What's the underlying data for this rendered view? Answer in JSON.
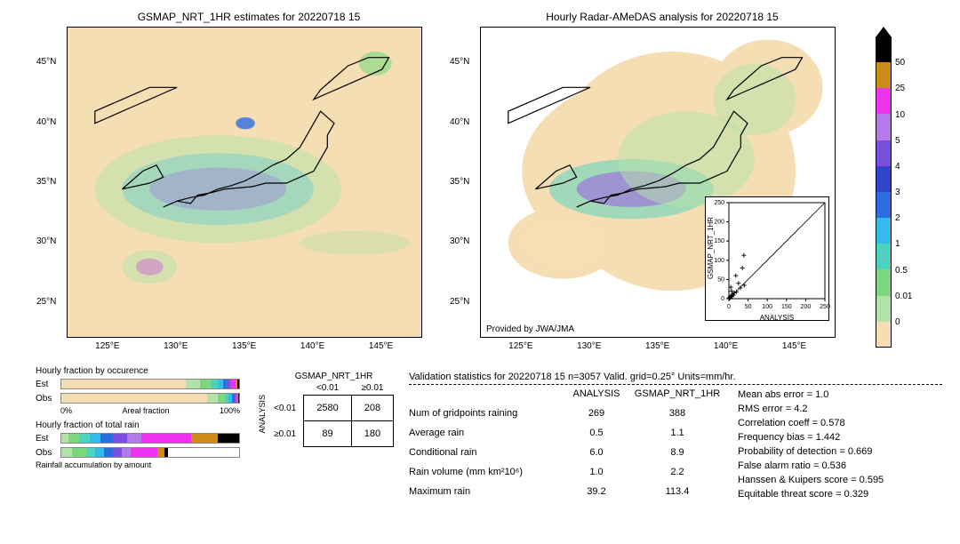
{
  "date_str": "20220718 15",
  "left_map": {
    "title": "GSMAP_NRT_1HR estimates for 20220718 15"
  },
  "right_map": {
    "title": "Hourly Radar-AMeDAS analysis for 20220718 15",
    "provenance": "Provided by JWA/JMA"
  },
  "map_axes": {
    "x_ticks": [
      "125°E",
      "130°E",
      "135°E",
      "140°E",
      "145°E"
    ],
    "y_ticks": [
      "25°N",
      "30°N",
      "35°N",
      "40°N",
      "45°N"
    ],
    "xlim": [
      122,
      148
    ],
    "ylim": [
      22,
      48
    ]
  },
  "colorbar": {
    "ticks": [
      "0",
      "0.01",
      "0.5",
      "1",
      "2",
      "3",
      "4",
      "5",
      "10",
      "25",
      "50"
    ],
    "colors": [
      "#f5deb3",
      "#b3e2a8",
      "#7dd87d",
      "#4dd2c0",
      "#33bbee",
      "#2e6de0",
      "#3344cc",
      "#7a4fe0",
      "#b67ae8",
      "#ee33ee",
      "#cc8b1a",
      "#000000"
    ]
  },
  "scatter_inset": {
    "xlabel": "ANALYSIS",
    "ylabel": "GSMAP_NRT_1HR",
    "lim": [
      0,
      250
    ],
    "ticks": [
      0,
      50,
      100,
      150,
      200,
      250
    ],
    "points": [
      [
        1,
        1
      ],
      [
        2,
        3
      ],
      [
        4,
        2
      ],
      [
        3,
        5
      ],
      [
        6,
        7
      ],
      [
        8,
        6
      ],
      [
        10,
        12
      ],
      [
        12,
        9
      ],
      [
        14,
        15
      ],
      [
        7,
        20
      ],
      [
        20,
        18
      ],
      [
        5,
        30
      ],
      [
        30,
        28
      ],
      [
        25,
        40
      ],
      [
        40,
        35
      ],
      [
        18,
        60
      ],
      [
        35,
        80
      ],
      [
        39,
        113
      ]
    ],
    "marker": "+",
    "color": "#000"
  },
  "occurrence_bars": {
    "title": "Hourly fraction by occurence",
    "xlabel_left": "0%",
    "xlabel_right": "100%",
    "xlabel_mid": "Areal fraction",
    "rows": [
      {
        "label": "Est",
        "segs": [
          [
            "#f5deb3",
            70
          ],
          [
            "#b3e2a8",
            8
          ],
          [
            "#7dd87d",
            6
          ],
          [
            "#4dd2c0",
            4
          ],
          [
            "#33bbee",
            3
          ],
          [
            "#2e6de0",
            2
          ],
          [
            "#7a4fe0",
            2
          ],
          [
            "#ee33ee",
            3
          ],
          [
            "#cc8b1a",
            1
          ],
          [
            "#000",
            1
          ]
        ]
      },
      {
        "label": "Obs",
        "segs": [
          [
            "#f5deb3",
            82
          ],
          [
            "#b3e2a8",
            6
          ],
          [
            "#7dd87d",
            4
          ],
          [
            "#4dd2c0",
            2
          ],
          [
            "#33bbee",
            2
          ],
          [
            "#2e6de0",
            1
          ],
          [
            "#7a4fe0",
            1
          ],
          [
            "#ee33ee",
            1
          ],
          [
            "#cc8b1a",
            0.5
          ],
          [
            "#000",
            0.5
          ]
        ]
      }
    ]
  },
  "rain_bars": {
    "title": "Hourly fraction of total rain",
    "subtitle": "Rainfall accumulation by amount",
    "rows": [
      {
        "label": "Est",
        "segs": [
          [
            "#b3e2a8",
            4
          ],
          [
            "#7dd87d",
            6
          ],
          [
            "#4dd2c0",
            6
          ],
          [
            "#33bbee",
            6
          ],
          [
            "#2e6de0",
            7
          ],
          [
            "#7a4fe0",
            8
          ],
          [
            "#b67ae8",
            8
          ],
          [
            "#ee33ee",
            28
          ],
          [
            "#cc8b1a",
            15
          ],
          [
            "#000",
            12
          ]
        ]
      },
      {
        "label": "Obs",
        "segs": [
          [
            "#b3e2a8",
            6
          ],
          [
            "#7dd87d",
            8
          ],
          [
            "#4dd2c0",
            5
          ],
          [
            "#33bbee",
            5
          ],
          [
            "#2e6de0",
            5
          ],
          [
            "#7a4fe0",
            5
          ],
          [
            "#b67ae8",
            5
          ],
          [
            "#ee33ee",
            15
          ],
          [
            "#cc8b1a",
            4
          ],
          [
            "#000",
            2
          ]
        ]
      }
    ]
  },
  "contingency": {
    "col_title": "GSMAP_NRT_1HR",
    "row_title": "ANALYSIS",
    "col_labels": [
      "<0.01",
      "≥0.01"
    ],
    "row_labels": [
      "<0.01",
      "≥0.01"
    ],
    "cells": [
      [
        "2580",
        "208"
      ],
      [
        "89",
        "180"
      ]
    ]
  },
  "validation": {
    "title": "Validation statistics for 20220718 15  n=3057 Valid. grid=0.25° Units=mm/hr.",
    "col_headers": [
      "",
      "ANALYSIS",
      "GSMAP_NRT_1HR"
    ],
    "rows": [
      [
        "Num of gridpoints raining",
        "269",
        "388"
      ],
      [
        "Average rain",
        "0.5",
        "1.1"
      ],
      [
        "Conditional rain",
        "6.0",
        "8.9"
      ],
      [
        "Rain volume (mm km²10⁶)",
        "1.0",
        "2.2"
      ],
      [
        "Maximum rain",
        "39.2",
        "113.4"
      ]
    ],
    "metrics": [
      "Mean abs error =   1.0",
      "RMS error =   4.2",
      "Correlation coeff =  0.578",
      "Frequency bias =  1.442",
      "Probability of detection =  0.669",
      "False alarm ratio =  0.536",
      "Hanssen & Kuipers score =  0.595",
      "Equitable threat score =  0.329"
    ]
  },
  "styling": {
    "map_bg": "#f5deb3",
    "coastline_color": "#000000",
    "font_family": "sans-serif",
    "title_fontsize": 12,
    "tick_fontsize": 10
  }
}
